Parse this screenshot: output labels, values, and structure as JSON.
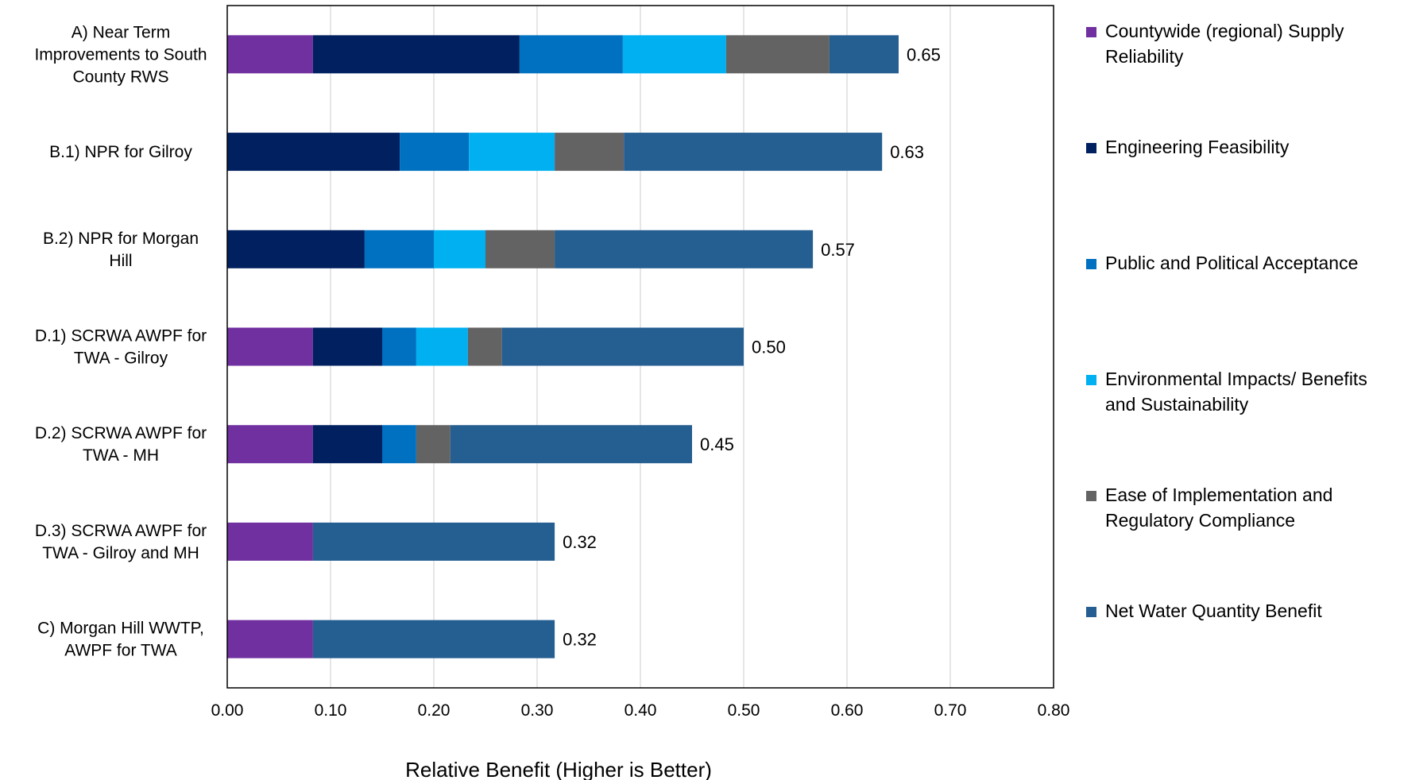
{
  "chart_data": {
    "type": "bar",
    "orientation": "horizontal",
    "stacked": true,
    "xlabel": "Relative Benefit (Higher is Better)",
    "ylabel": "",
    "xlim": [
      0,
      0.8
    ],
    "x_ticks": [
      "0.00",
      "0.10",
      "0.20",
      "0.30",
      "0.40",
      "0.50",
      "0.60",
      "0.70",
      "0.80"
    ],
    "grid": "vertical",
    "legend_position": "right",
    "categories": [
      [
        "A) Near Term",
        "Improvements to South",
        "County RWS"
      ],
      [
        "B.1) NPR for Gilroy"
      ],
      [
        "B.2) NPR for Morgan",
        "Hill"
      ],
      [
        "D.1) SCRWA AWPF for",
        "TWA - Gilroy"
      ],
      [
        "D.2) SCRWA AWPF for",
        "TWA - MH"
      ],
      [
        "D.3) SCRWA AWPF for",
        "TWA - Gilroy and MH"
      ],
      [
        "C) Morgan Hill WWTP,",
        "AWPF for TWA"
      ]
    ],
    "totals": [
      "0.65",
      "0.63",
      "0.57",
      "0.50",
      "0.45",
      "0.32",
      "0.32"
    ],
    "series": [
      {
        "name": [
          "Countywide (regional) Supply",
          "Reliability"
        ],
        "color": "#7030a0",
        "values": [
          0.083,
          0,
          0,
          0.083,
          0.083,
          0.083,
          0.083
        ]
      },
      {
        "name": [
          "Engineering Feasibility"
        ],
        "color": "#002060",
        "values": [
          0.2,
          0.167,
          0.133,
          0.067,
          0.067,
          0,
          0
        ]
      },
      {
        "name": [
          "Public and Political Acceptance"
        ],
        "color": "#0070c0",
        "values": [
          0.1,
          0.067,
          0.067,
          0.033,
          0.033,
          0,
          0
        ]
      },
      {
        "name": [
          "Environmental Impacts/ Benefits",
          "and Sustainability"
        ],
        "color": "#00b0f0",
        "values": [
          0.1,
          0.083,
          0.05,
          0.05,
          0,
          0,
          0
        ]
      },
      {
        "name": [
          "Ease of Implementation and",
          "Regulatory Compliance"
        ],
        "color": "#636363",
        "values": [
          0.1,
          0.067,
          0.067,
          0.033,
          0.033,
          0,
          0
        ]
      },
      {
        "name": [
          "Net Water Quantity Benefit"
        ],
        "color": "#255e91",
        "values": [
          0.067,
          0.25,
          0.25,
          0.234,
          0.234,
          0.234,
          0.234
        ]
      }
    ]
  }
}
